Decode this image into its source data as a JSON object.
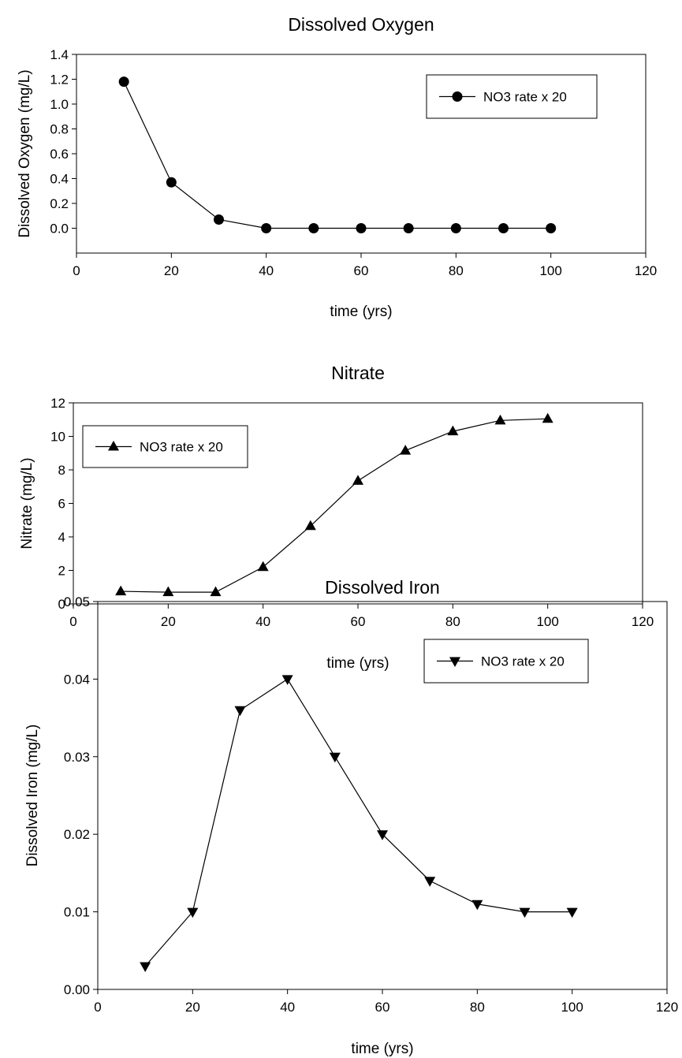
{
  "chart_data": [
    {
      "type": "line",
      "title": "Dissolved Oxygen",
      "xlabel": "time (yrs)",
      "ylabel": "Dissolved Oxygen (mg/L)",
      "xlim": [
        0,
        120
      ],
      "ylim": [
        -0.2,
        1.4
      ],
      "x_ticks": [
        "0",
        "20",
        "40",
        "60",
        "80",
        "100",
        "120"
      ],
      "y_ticks": [
        "0.0",
        "0.2",
        "0.4",
        "0.6",
        "0.8",
        "1.0",
        "1.2",
        "1.4"
      ],
      "grid": false,
      "legend_position": "top-right",
      "series": [
        {
          "name": "NO3 rate x 20",
          "marker": "circle",
          "x": [
            10,
            20,
            30,
            40,
            50,
            60,
            70,
            80,
            90,
            100
          ],
          "y": [
            1.18,
            0.37,
            0.07,
            0.0,
            0.0,
            0.0,
            0.0,
            0.0,
            0.0,
            0.0
          ]
        }
      ]
    },
    {
      "type": "line",
      "title": "Nitrate",
      "xlabel": "time (yrs)",
      "ylabel": "Nitrate (mg/L)",
      "xlim": [
        0,
        120
      ],
      "ylim": [
        0,
        12
      ],
      "x_ticks": [
        "0",
        "20",
        "40",
        "60",
        "80",
        "100",
        "120"
      ],
      "y_ticks": [
        "0",
        "2",
        "4",
        "6",
        "8",
        "10",
        "12"
      ],
      "grid": false,
      "legend_position": "top-left",
      "series": [
        {
          "name": "NO3 rate x 20",
          "marker": "triangle-up",
          "x": [
            10,
            20,
            30,
            40,
            50,
            60,
            70,
            80,
            90,
            100
          ],
          "y": [
            0.75,
            0.7,
            0.7,
            2.2,
            4.65,
            7.35,
            9.15,
            10.3,
            10.95,
            11.05
          ]
        }
      ]
    },
    {
      "type": "line",
      "title": "Dissolved Iron",
      "xlabel": "time (yrs)",
      "ylabel": "Dissolved Iron (mg/L)",
      "xlim": [
        0,
        120
      ],
      "ylim": [
        0,
        0.05
      ],
      "x_ticks": [
        "0",
        "20",
        "40",
        "60",
        "80",
        "100",
        "120"
      ],
      "y_ticks": [
        "0.00",
        "0.01",
        "0.02",
        "0.03",
        "0.04",
        "0.05"
      ],
      "grid": false,
      "legend_position": "top-right",
      "series": [
        {
          "name": "NO3 rate x 20",
          "marker": "triangle-down",
          "x": [
            10,
            20,
            30,
            40,
            50,
            60,
            70,
            80,
            90,
            100
          ],
          "y": [
            0.003,
            0.01,
            0.036,
            0.04,
            0.03,
            0.02,
            0.014,
            0.011,
            0.01,
            0.01
          ]
        }
      ]
    }
  ]
}
